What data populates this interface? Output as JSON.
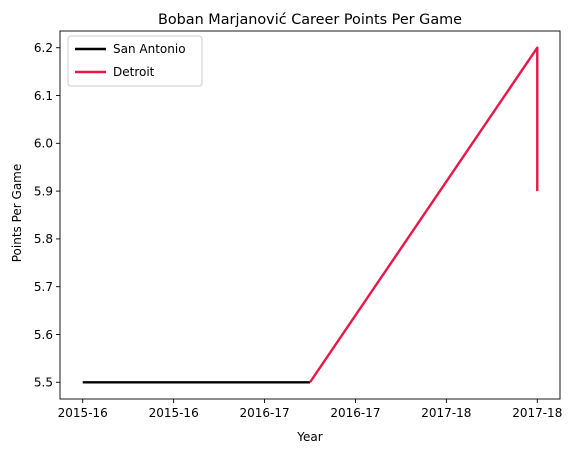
{
  "chart_data": {
    "type": "line",
    "title": "Boban Marjanović Career Points Per Game",
    "xlabel": "Year",
    "ylabel": "Points Per Game",
    "x_tick_labels": [
      "2015-16",
      "2015-16",
      "2016-17",
      "2016-17",
      "2017-18",
      "2017-18"
    ],
    "x_tick_positions": [
      0,
      1,
      2,
      3,
      4,
      5
    ],
    "xlim": [
      -0.25,
      5.25
    ],
    "ylim": [
      5.465,
      6.235
    ],
    "y_ticks": [
      5.5,
      5.6,
      5.7,
      5.8,
      5.9,
      6.0,
      6.1,
      6.2
    ],
    "y_tick_labels": [
      "5.5",
      "5.6",
      "5.7",
      "5.8",
      "5.9",
      "6.0",
      "6.1",
      "6.2"
    ],
    "grid": false,
    "legend_position": "top-left",
    "series": [
      {
        "name": "San Antonio",
        "color": "#000000",
        "points": [
          {
            "x": 0,
            "y": 5.5
          },
          {
            "x": 2.5,
            "y": 5.5
          }
        ]
      },
      {
        "name": "Detroit",
        "color": "#e8174a",
        "points": [
          {
            "x": 2.5,
            "y": 5.5
          },
          {
            "x": 5,
            "y": 6.2
          },
          {
            "x": 5,
            "y": 5.9
          }
        ]
      }
    ]
  }
}
